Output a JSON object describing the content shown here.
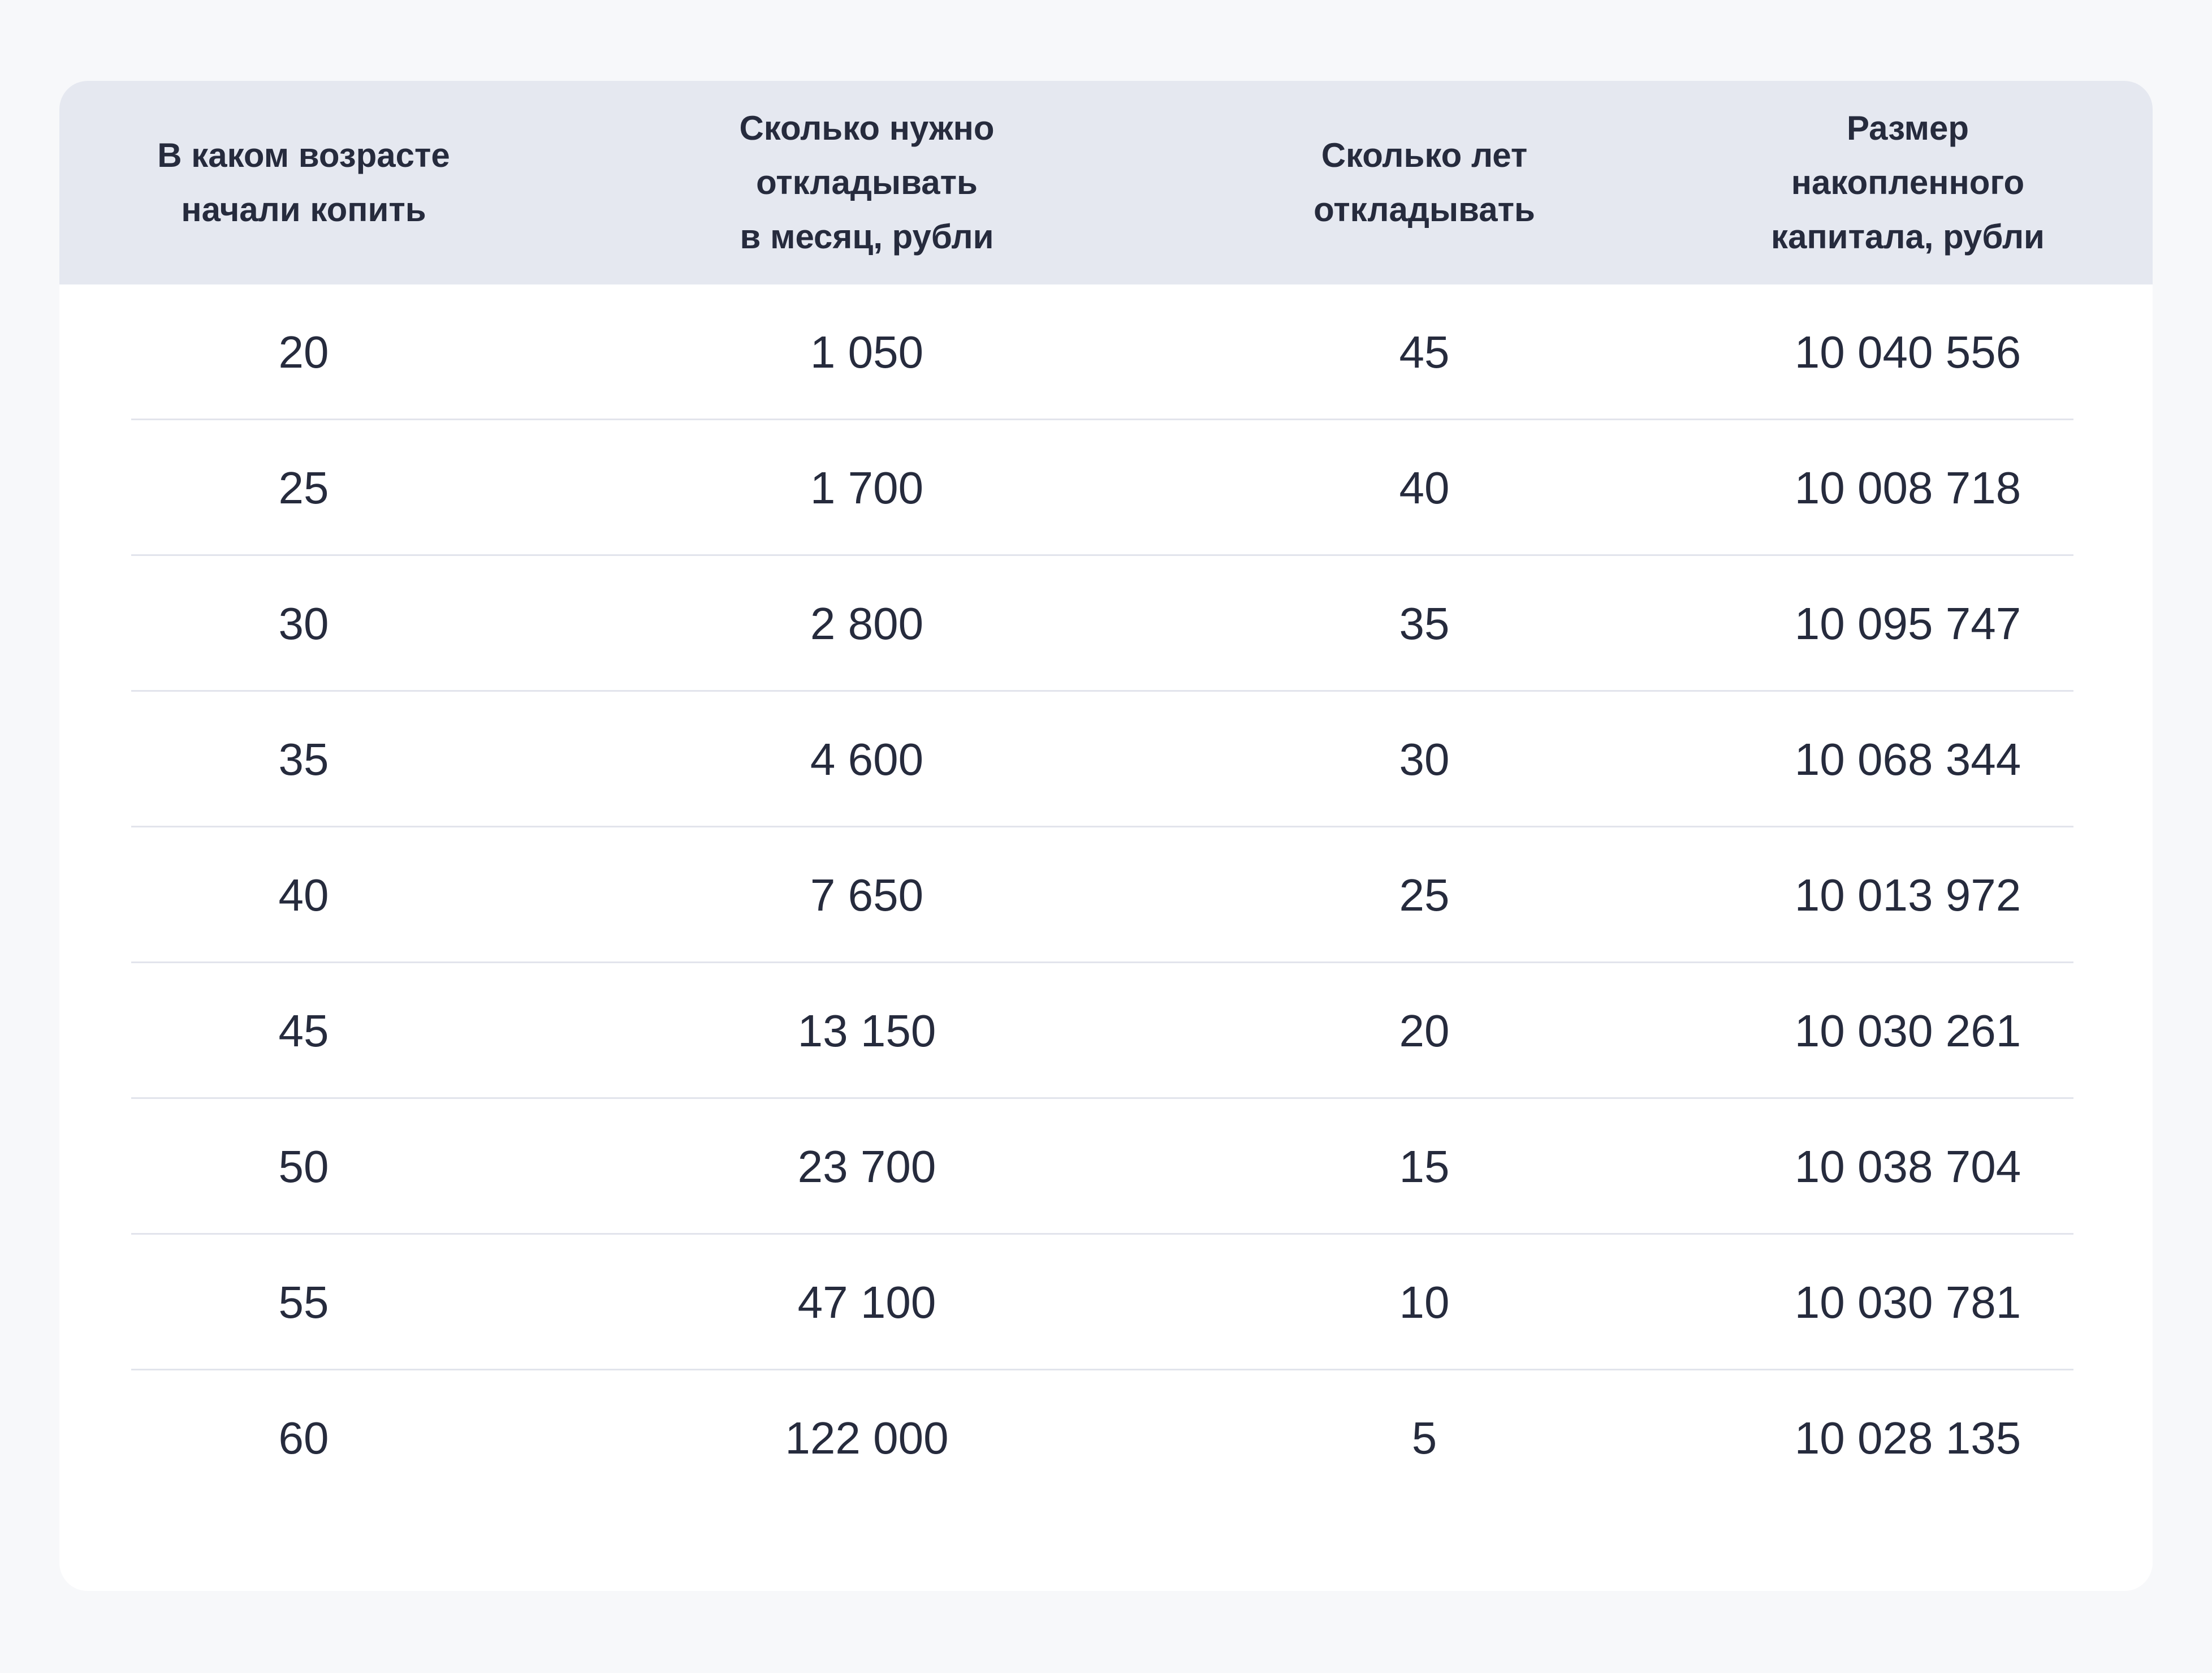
{
  "chart_data": {
    "type": "table",
    "columns": [
      "В каком возрасте\nначали копить",
      "Сколько нужно\nоткладывать\nв месяц, рубли",
      "Сколько лет\nоткладывать",
      "Размер\nнакопленного\nкапитала, рубли"
    ],
    "rows": [
      [
        "20",
        "1 050",
        "45",
        "10 040 556"
      ],
      [
        "25",
        "1 700",
        "40",
        "10 008 718"
      ],
      [
        "30",
        "2 800",
        "35",
        "10 095 747"
      ],
      [
        "35",
        "4 600",
        "30",
        "10 068 344"
      ],
      [
        "40",
        "7 650",
        "25",
        "10 013 972"
      ],
      [
        "45",
        "13 150",
        "20",
        "10 030 261"
      ],
      [
        "50",
        "23 700",
        "15",
        "10 038 704"
      ],
      [
        "55",
        "47 100",
        "10",
        "10 030 781"
      ],
      [
        "60",
        "122 000",
        "5",
        "10 028 135"
      ]
    ]
  },
  "colors": {
    "page_background": "#f7f8fa",
    "card_background": "#ffffff",
    "header_background": "#e5e8f0",
    "text": "#262b3d",
    "divider": "#e2e4ec"
  }
}
